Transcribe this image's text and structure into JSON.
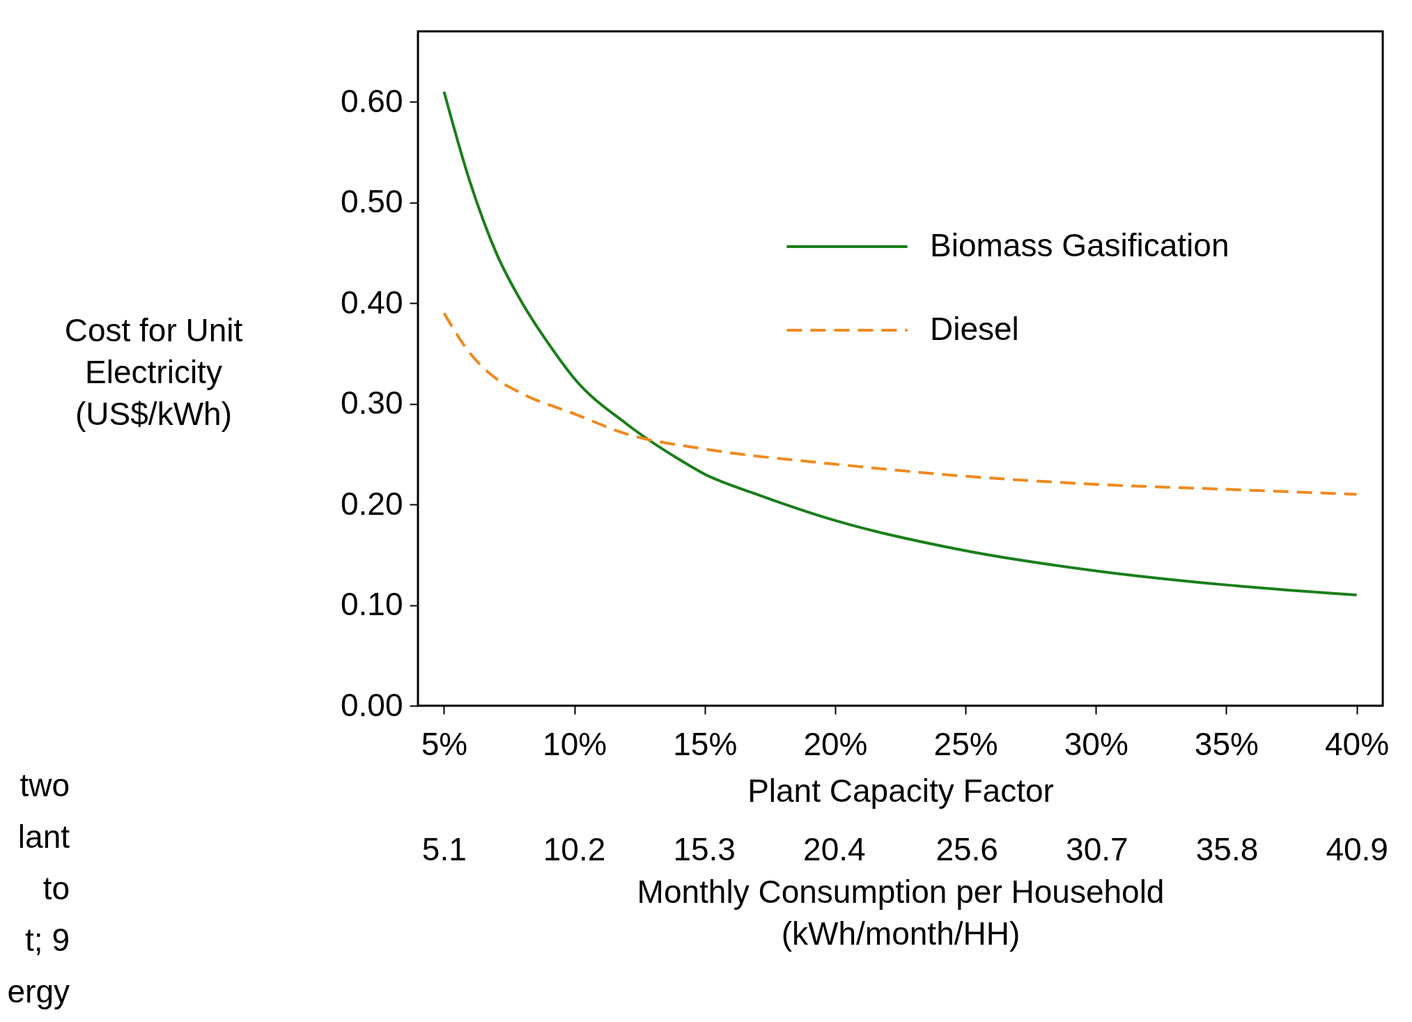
{
  "chart_data": {
    "type": "line",
    "xlabel": "Plant Capacity Factor",
    "ylabel": "Cost for Unit\nElectricity\n(US$/kWh)",
    "x2label": "Monthly Consumption per Household\n(kWh/month/HH)",
    "xlim": [
      4,
      41
    ],
    "xticks": [
      {
        "value": 5,
        "label": "5%"
      },
      {
        "value": 10,
        "label": "10%"
      },
      {
        "value": 15,
        "label": "15%"
      },
      {
        "value": 20,
        "label": "20%"
      },
      {
        "value": 25,
        "label": "25%"
      },
      {
        "value": 30,
        "label": "30%"
      },
      {
        "value": 35,
        "label": "35%"
      },
      {
        "value": 40,
        "label": "40%"
      }
    ],
    "x2lim": [
      4.08,
      41.92
    ],
    "x2ticks": [
      5.1,
      10.2,
      15.3,
      20.4,
      25.6,
      30.7,
      35.8,
      40.9
    ],
    "ylim": [
      0,
      0.67
    ],
    "yticks": [
      {
        "value": 0,
        "label": "0.00"
      },
      {
        "value": 0.1,
        "label": "0.10"
      },
      {
        "value": 0.2,
        "label": "0.20"
      },
      {
        "value": 0.3,
        "label": "0.30"
      },
      {
        "value": 0.4,
        "label": "0.40"
      },
      {
        "value": 0.5,
        "label": "0.50"
      },
      {
        "value": 0.6,
        "label": "0.60"
      }
    ],
    "grid": false,
    "legend": "top right",
    "marker": "none",
    "annotations": [
      "two",
      "lant",
      "to",
      "t; 9",
      "ergy"
    ],
    "series": [
      {
        "name": "Biomass Gasification",
        "color": "#1a7f1a",
        "line_style": "solid",
        "x": [
          5,
          6,
          7,
          8,
          9,
          10,
          12,
          14,
          15,
          17,
          20,
          25,
          30,
          35,
          40
        ],
        "values": [
          0.61,
          0.52,
          0.45,
          0.4,
          0.36,
          0.325,
          0.28,
          0.245,
          0.23,
          0.21,
          0.184,
          0.154,
          0.134,
          0.12,
          0.11
        ]
      },
      {
        "name": "Diesel",
        "color": "#f0891e",
        "line_style": "dashed",
        "x": [
          5,
          6,
          7,
          8,
          10,
          12,
          15,
          20,
          25,
          30,
          35,
          40
        ],
        "values": [
          0.39,
          0.35,
          0.325,
          0.31,
          0.29,
          0.27,
          0.255,
          0.24,
          0.228,
          0.22,
          0.215,
          0.21
        ]
      }
    ]
  }
}
